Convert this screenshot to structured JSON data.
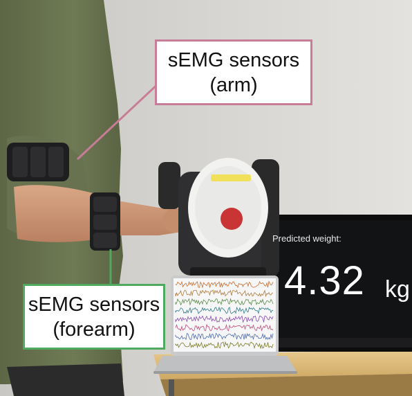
{
  "callouts": {
    "arm": {
      "line1": "sEMG sensors",
      "line2": "(arm)",
      "color": "#c77d97"
    },
    "forearm": {
      "line1": "sEMG sensors",
      "line2": "(forearm)",
      "color": "#4faa5f"
    }
  },
  "monitor": {
    "label": "Predicted weight:",
    "value": "4.32",
    "unit": "kg"
  },
  "laptop": {
    "signal_colors": [
      "#c86a2a",
      "#b07a3a",
      "#5a8a4a",
      "#2a7a8a",
      "#8a4ab0",
      "#c04a7a",
      "#4a6ab0",
      "#7a7a2a"
    ]
  }
}
